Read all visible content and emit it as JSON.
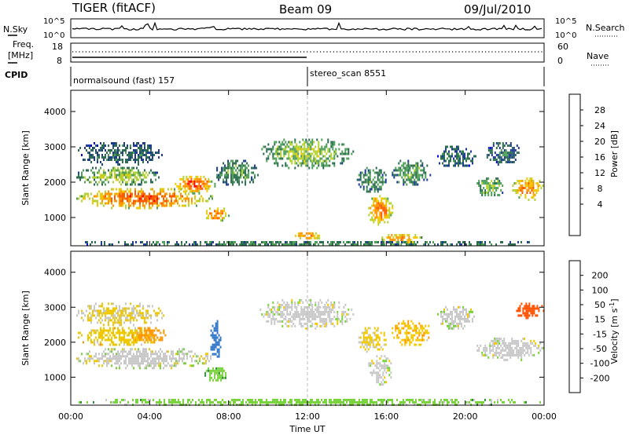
{
  "header": {
    "radar": "TIGER (fitACF)",
    "beam": "Beam 09",
    "date": "09/Jul/2010"
  },
  "housekeeping": {
    "nsky_label": "N.Sky",
    "nsky_ticks": [
      "10^5",
      "10^0"
    ],
    "nsearch_label": "N.Search",
    "nsearch_ticks": [
      "10^5",
      "10^0"
    ],
    "freq_label_top": "Freq.",
    "freq_label_bottom": "[MHz]",
    "freq_ticks": [
      "18",
      "8"
    ],
    "nave_label": "Nave",
    "nave_ticks": [
      "60",
      "0"
    ],
    "cpid_label": "CPID"
  },
  "cpid_segments": [
    {
      "label": "normalsound (fast) 157",
      "start_hour": 0
    },
    {
      "label": "stereo_scan 8551",
      "start_hour": 12
    }
  ],
  "chart_data": [
    {
      "type": "heatmap",
      "panel": "power",
      "ylabel": "Slant Range [km]",
      "xlabel": "Time UT",
      "x_ticks": [
        "00:00",
        "04:00",
        "08:00",
        "12:00",
        "16:00",
        "20:00",
        "00:00"
      ],
      "xlim_hours": [
        0,
        24
      ],
      "ylim": [
        200,
        4600
      ],
      "y_ticks": [
        1000,
        2000,
        3000,
        4000
      ],
      "colorbar": {
        "label": "Power [dB]",
        "ticks": [
          "28",
          "24",
          "20",
          "16",
          "12",
          "8",
          "4"
        ],
        "colors": [
          "#ff0000",
          "#ff5a00",
          "#ff9600",
          "#f0c800",
          "#b4d232",
          "#50a05a",
          "#2d6e50",
          "#1e3c96",
          "#0000ff"
        ]
      },
      "regions": [
        {
          "t0": 0.2,
          "t1": 7.2,
          "r0": 1250,
          "r1": 1900,
          "value": 26
        },
        {
          "t0": 5.2,
          "t1": 7.3,
          "r0": 1700,
          "r1": 2250,
          "value": 27
        },
        {
          "t0": 0.2,
          "t1": 4.5,
          "r0": 1900,
          "r1": 2500,
          "value": 14
        },
        {
          "t0": 0.2,
          "t1": 4.8,
          "r0": 2500,
          "r1": 3200,
          "value": 6
        },
        {
          "t0": 6.7,
          "t1": 8.0,
          "r0": 900,
          "r1": 1350,
          "value": 25
        },
        {
          "t0": 7.3,
          "t1": 9.5,
          "r0": 1900,
          "r1": 2700,
          "value": 10
        },
        {
          "t0": 9.5,
          "t1": 14.3,
          "r0": 2400,
          "r1": 3300,
          "value": 14
        },
        {
          "t0": 14.5,
          "t1": 16.0,
          "r0": 1700,
          "r1": 2500,
          "value": 10
        },
        {
          "t0": 15.0,
          "t1": 16.3,
          "r0": 800,
          "r1": 1700,
          "value": 25
        },
        {
          "t0": 16.2,
          "t1": 18.3,
          "r0": 1900,
          "r1": 2700,
          "value": 10
        },
        {
          "t0": 18.5,
          "t1": 20.5,
          "r0": 2400,
          "r1": 3100,
          "value": 6
        },
        {
          "t0": 20.5,
          "t1": 22.0,
          "r0": 1600,
          "r1": 2200,
          "value": 12
        },
        {
          "t0": 22.3,
          "t1": 24.0,
          "r0": 1500,
          "r1": 2200,
          "value": 24
        },
        {
          "t0": 21.0,
          "t1": 22.8,
          "r0": 2500,
          "r1": 3200,
          "value": 6
        },
        {
          "t0": 11.2,
          "t1": 12.8,
          "r0": 400,
          "r1": 650,
          "value": 24
        },
        {
          "t0": 15.6,
          "t1": 17.8,
          "r0": 250,
          "r1": 600,
          "value": 24
        },
        {
          "t0": 0.0,
          "t1": 24.0,
          "r0": 200,
          "r1": 400,
          "value": 8
        }
      ]
    },
    {
      "type": "heatmap",
      "panel": "velocity",
      "ylabel": "Slant Range [km]",
      "xlabel": "Time UT",
      "x_ticks": [
        "00:00",
        "04:00",
        "08:00",
        "12:00",
        "16:00",
        "20:00",
        "00:00"
      ],
      "xlim_hours": [
        0,
        24
      ],
      "ylim": [
        200,
        4600
      ],
      "y_ticks": [
        1000,
        2000,
        3000,
        4000
      ],
      "colorbar": {
        "label": "Velocity [m s",
        "label_sup": "-1",
        "label_end": "]",
        "ticks": [
          "200",
          "100",
          "50",
          "15",
          "-15",
          "-50",
          "-100",
          "-200"
        ],
        "colors": [
          "#1e3cb4",
          "#3278c8",
          "#2d8c3c",
          "#78d23c",
          "#c8c8c8",
          "#f0c800",
          "#ff9600",
          "#ff5000",
          "#ff0000"
        ]
      },
      "regions": [
        {
          "t0": 0.2,
          "t1": 7.2,
          "r0": 1250,
          "r1": 1900,
          "value": 0
        },
        {
          "t0": 0.2,
          "t1": 4.5,
          "r0": 1900,
          "r1": 2500,
          "value": -30
        },
        {
          "t0": 3.0,
          "t1": 4.8,
          "r0": 2000,
          "r1": 2500,
          "value": -60
        },
        {
          "t0": 0.2,
          "t1": 4.8,
          "r0": 2500,
          "r1": 3200,
          "value": -20
        },
        {
          "t0": 6.7,
          "t1": 8.0,
          "r0": 900,
          "r1": 1350,
          "value": 40
        },
        {
          "t0": 7.0,
          "t1": 7.6,
          "r0": 1500,
          "r1": 2700,
          "value": 150
        },
        {
          "t0": 9.5,
          "t1": 14.3,
          "r0": 2400,
          "r1": 3300,
          "value": 0
        },
        {
          "t0": 14.5,
          "t1": 16.0,
          "r0": 1700,
          "r1": 2500,
          "value": -20
        },
        {
          "t0": 15.0,
          "t1": 16.3,
          "r0": 800,
          "r1": 1700,
          "value": 0
        },
        {
          "t0": 16.2,
          "t1": 18.3,
          "r0": 1900,
          "r1": 2700,
          "value": -40
        },
        {
          "t0": 18.5,
          "t1": 20.5,
          "r0": 2400,
          "r1": 3100,
          "value": 0
        },
        {
          "t0": 20.5,
          "t1": 24.0,
          "r0": 1500,
          "r1": 2200,
          "value": 0
        },
        {
          "t0": 22.5,
          "t1": 24.0,
          "r0": 2700,
          "r1": 3200,
          "value": -150
        },
        {
          "t0": 0.0,
          "t1": 24.0,
          "r0": 200,
          "r1": 450,
          "value": 30
        }
      ]
    }
  ]
}
